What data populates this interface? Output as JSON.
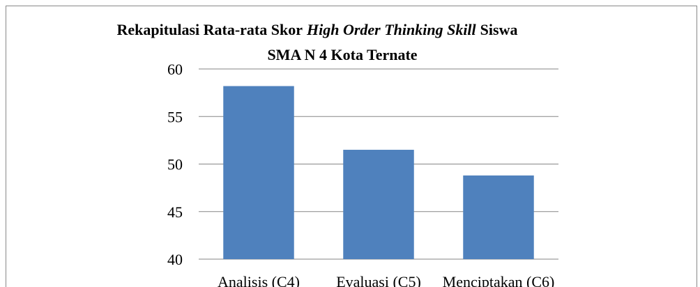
{
  "chart_data": {
    "type": "bar",
    "title": [
      [
        {
          "text": "Rekapitulasi Rata-rata Skor",
          "italic": false
        },
        {
          "text": "High Order Thinking Skill",
          "italic": true
        },
        {
          "text": "Siswa",
          "italic": false
        }
      ],
      [
        {
          "text": "SMA N 4 Kota Ternate",
          "italic": false
        }
      ]
    ],
    "categories": [
      "Analisis (C4)",
      "Evaluasi (C5)",
      "Menciptakan (C6)"
    ],
    "values": [
      58.2,
      51.5,
      48.8
    ],
    "color": "#4f81bd",
    "ylim": [
      40,
      60
    ],
    "yticks": [
      40,
      45,
      50,
      55,
      60
    ],
    "grid": true
  }
}
